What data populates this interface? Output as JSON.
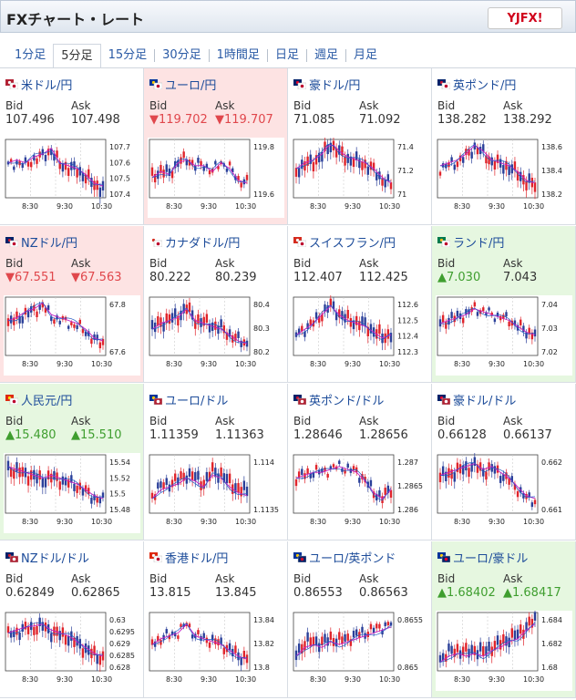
{
  "header": {
    "title": "FXチャート・レート",
    "logo": "YJFX!"
  },
  "tabs": [
    "1分足",
    "5分足",
    "15分足",
    "30分足",
    "1時間足",
    "日足",
    "週足",
    "月足"
  ],
  "active_tab": 1,
  "labels": {
    "bid": "Bid",
    "ask": "Ask"
  },
  "time_labels": [
    "8:30",
    "9:30",
    "10:30"
  ],
  "pairs": [
    {
      "name": "米ドル/円",
      "bid": "107.496",
      "ask": "107.498",
      "state": "none",
      "flag": "us-jp",
      "ticks": [
        "107.7",
        "107.6",
        "107.5",
        "107.4"
      ],
      "trend": [
        0.55,
        0.6,
        0.55,
        0.65,
        0.7,
        0.8,
        0.55,
        0.5,
        0.45,
        0.35,
        0.2,
        0.15
      ],
      "ma": "down"
    },
    {
      "name": "ユーロ/円",
      "bid": "▼119.702",
      "ask": "▼119.707",
      "state": "down",
      "flag": "eu-jp",
      "ticks": [
        "119.8",
        "119.6"
      ],
      "trend": [
        0.35,
        0.45,
        0.4,
        0.6,
        0.65,
        0.55,
        0.55,
        0.45,
        0.6,
        0.5,
        0.3,
        0.25
      ],
      "ma": "flat"
    },
    {
      "name": "豪ドル/円",
      "bid": "71.085",
      "ask": "71.092",
      "state": "none",
      "flag": "au-jp",
      "ticks": [
        "71.4",
        "71.2",
        "71"
      ],
      "trend": [
        0.45,
        0.55,
        0.6,
        0.7,
        0.9,
        0.75,
        0.65,
        0.6,
        0.55,
        0.45,
        0.3,
        0.2
      ],
      "ma": "down"
    },
    {
      "name": "英ポンド/円",
      "bid": "138.282",
      "ask": "138.292",
      "state": "none",
      "flag": "uk-jp",
      "ticks": [
        "138.6",
        "138.4",
        "138.2"
      ],
      "trend": [
        0.5,
        0.55,
        0.6,
        0.7,
        0.85,
        0.75,
        0.6,
        0.55,
        0.5,
        0.4,
        0.25,
        0.2
      ],
      "ma": "down"
    },
    {
      "name": "NZドル/円",
      "bid": "▼67.551",
      "ask": "▼67.563",
      "state": "down",
      "flag": "nz-jp",
      "ticks": [
        "67.8",
        "67.6"
      ],
      "trend": [
        0.55,
        0.6,
        0.7,
        0.75,
        0.85,
        0.65,
        0.6,
        0.55,
        0.5,
        0.4,
        0.25,
        0.2
      ],
      "ma": "down"
    },
    {
      "name": "カナダドル/円",
      "bid": "80.222",
      "ask": "80.239",
      "state": "none",
      "flag": "ca-jp",
      "ticks": [
        "80.4",
        "80.3",
        "80.2"
      ],
      "trend": [
        0.45,
        0.55,
        0.6,
        0.65,
        0.8,
        0.6,
        0.55,
        0.5,
        0.45,
        0.35,
        0.25,
        0.2
      ],
      "ma": "flat"
    },
    {
      "name": "スイスフラン/円",
      "bid": "112.407",
      "ask": "112.425",
      "state": "none",
      "flag": "ch-jp",
      "ticks": [
        "112.6",
        "112.5",
        "112.4",
        "112.3"
      ],
      "trend": [
        0.35,
        0.45,
        0.55,
        0.7,
        0.85,
        0.7,
        0.6,
        0.55,
        0.5,
        0.4,
        0.3,
        0.35
      ],
      "ma": "flat"
    },
    {
      "name": "ランド/円",
      "bid": "▲7.030",
      "ask": "7.043",
      "state": "up",
      "flag": "za-jp",
      "ticks": [
        "7.04",
        "7.03",
        "7.02"
      ],
      "trend": [
        0.55,
        0.6,
        0.65,
        0.7,
        0.8,
        0.75,
        0.7,
        0.65,
        0.6,
        0.5,
        0.4,
        0.35
      ],
      "ma": "flat"
    },
    {
      "name": "人民元/円",
      "bid": "▲15.480",
      "ask": "▲15.510",
      "state": "up",
      "flag": "cn-jp",
      "ticks": [
        "15.54",
        "15.52",
        "15.5",
        "15.48"
      ],
      "trend": [
        0.75,
        0.7,
        0.65,
        0.6,
        0.55,
        0.6,
        0.55,
        0.5,
        0.45,
        0.35,
        0.25,
        0.2
      ],
      "ma": "down"
    },
    {
      "name": "ユーロ/ドル",
      "bid": "1.11359",
      "ask": "1.11363",
      "state": "none",
      "flag": "eu-us",
      "ticks": [
        "1.114",
        "1.1135"
      ],
      "trend": [
        0.3,
        0.45,
        0.5,
        0.55,
        0.65,
        0.6,
        0.5,
        0.7,
        0.65,
        0.5,
        0.4,
        0.35
      ],
      "ma": "up"
    },
    {
      "name": "英ポンド/ドル",
      "bid": "1.28646",
      "ask": "1.28656",
      "state": "none",
      "flag": "uk-us",
      "ticks": [
        "1.287",
        "1.2865",
        "1.286"
      ],
      "trend": [
        0.6,
        0.65,
        0.7,
        0.7,
        0.75,
        0.8,
        0.75,
        0.7,
        0.55,
        0.35,
        0.25,
        0.4
      ],
      "ma": "flat"
    },
    {
      "name": "豪ドル/ドル",
      "bid": "0.66128",
      "ask": "0.66137",
      "state": "none",
      "flag": "au-us",
      "ticks": [
        "0.662",
        "0.661"
      ],
      "trend": [
        0.6,
        0.65,
        0.7,
        0.75,
        0.8,
        0.7,
        0.75,
        0.65,
        0.55,
        0.4,
        0.25,
        0.2
      ],
      "ma": "down"
    },
    {
      "name": "NZドル/ドル",
      "bid": "0.62849",
      "ask": "0.62865",
      "state": "none",
      "flag": "nz-us",
      "ticks": [
        "0.63",
        "0.6295",
        "0.629",
        "0.6285",
        "0.628"
      ],
      "trend": [
        0.6,
        0.65,
        0.7,
        0.72,
        0.75,
        0.65,
        0.6,
        0.55,
        0.45,
        0.35,
        0.25,
        0.2
      ],
      "ma": "down"
    },
    {
      "name": "香港ドル/円",
      "bid": "13.815",
      "ask": "13.845",
      "state": "none",
      "flag": "hk-jp",
      "ticks": [
        "13.84",
        "13.82",
        "13.8"
      ],
      "trend": [
        0.45,
        0.55,
        0.6,
        0.65,
        0.8,
        0.6,
        0.55,
        0.5,
        0.45,
        0.35,
        0.25,
        0.2
      ],
      "ma": "flat"
    },
    {
      "name": "ユーロ/英ポンド",
      "bid": "0.86553",
      "ask": "0.86563",
      "state": "none",
      "flag": "eu-uk",
      "ticks": [
        "0.8655",
        "0.865"
      ],
      "trend": [
        0.3,
        0.45,
        0.5,
        0.45,
        0.55,
        0.5,
        0.55,
        0.6,
        0.65,
        0.7,
        0.75,
        0.8
      ],
      "ma": "up"
    },
    {
      "name": "ユーロ/豪ドル",
      "bid": "▲1.68402",
      "ask": "▲1.68417",
      "state": "up",
      "flag": "eu-au",
      "ticks": [
        "1.684",
        "1.682",
        "1.68"
      ],
      "trend": [
        0.2,
        0.3,
        0.35,
        0.3,
        0.35,
        0.3,
        0.4,
        0.45,
        0.55,
        0.6,
        0.75,
        0.85
      ],
      "ma": "up"
    }
  ]
}
